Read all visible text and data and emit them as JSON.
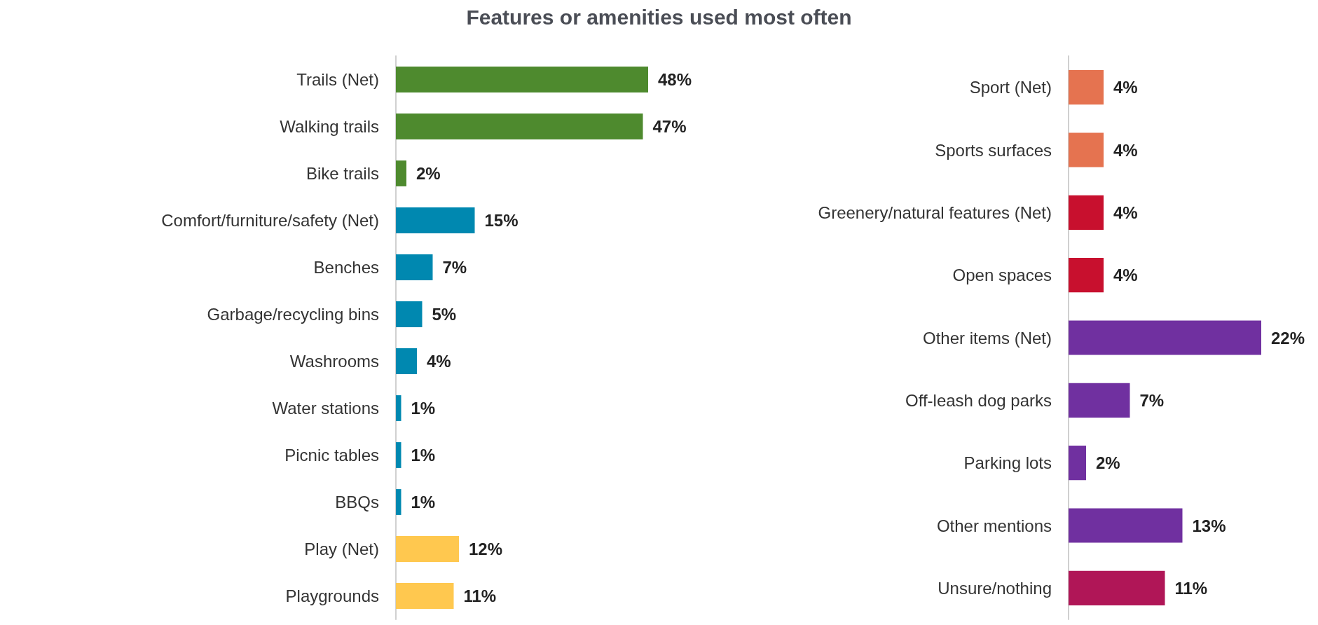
{
  "chart_data": [
    {
      "type": "bar",
      "orientation": "horizontal",
      "title": "Features or amenities used most often",
      "categories": [
        "Trails (Net)",
        "Walking trails",
        "Bike trails",
        "Comfort/furniture/safety (Net)",
        "Benches",
        "Garbage/recycling bins",
        "Washrooms",
        "Water stations",
        "Picnic tables",
        "BBQs",
        "Play (Net)",
        "Playgrounds"
      ],
      "values": [
        48,
        47,
        2,
        15,
        7,
        5,
        4,
        1,
        1,
        1,
        12,
        11
      ],
      "value_labels": [
        "48%",
        "47%",
        "2%",
        "15%",
        "7%",
        "5%",
        "4%",
        "1%",
        "1%",
        "1%",
        "12%",
        "11%"
      ],
      "colors": [
        "#4e8a2e",
        "#4e8a2e",
        "#4e8a2e",
        "#0088b0",
        "#0088b0",
        "#0088b0",
        "#0088b0",
        "#0088b0",
        "#0088b0",
        "#0088b0",
        "#ffc84f",
        "#ffc84f"
      ]
    },
    {
      "type": "bar",
      "orientation": "horizontal",
      "categories": [
        "Sport (Net)",
        "Sports surfaces",
        "Greenery/natural features (Net)",
        "Open spaces",
        "Other items (Net)",
        "Off-leash dog parks",
        "Parking lots",
        "Other mentions",
        "Unsure/nothing"
      ],
      "values": [
        4,
        4,
        4,
        4,
        22,
        7,
        2,
        13,
        11
      ],
      "value_labels": [
        "4%",
        "4%",
        "4%",
        "4%",
        "22%",
        "7%",
        "2%",
        "13%",
        "11%"
      ],
      "colors": [
        "#e57350",
        "#e57350",
        "#c8102e",
        "#c8102e",
        "#7030a0",
        "#7030a0",
        "#7030a0",
        "#7030a0",
        "#b01657"
      ]
    }
  ]
}
